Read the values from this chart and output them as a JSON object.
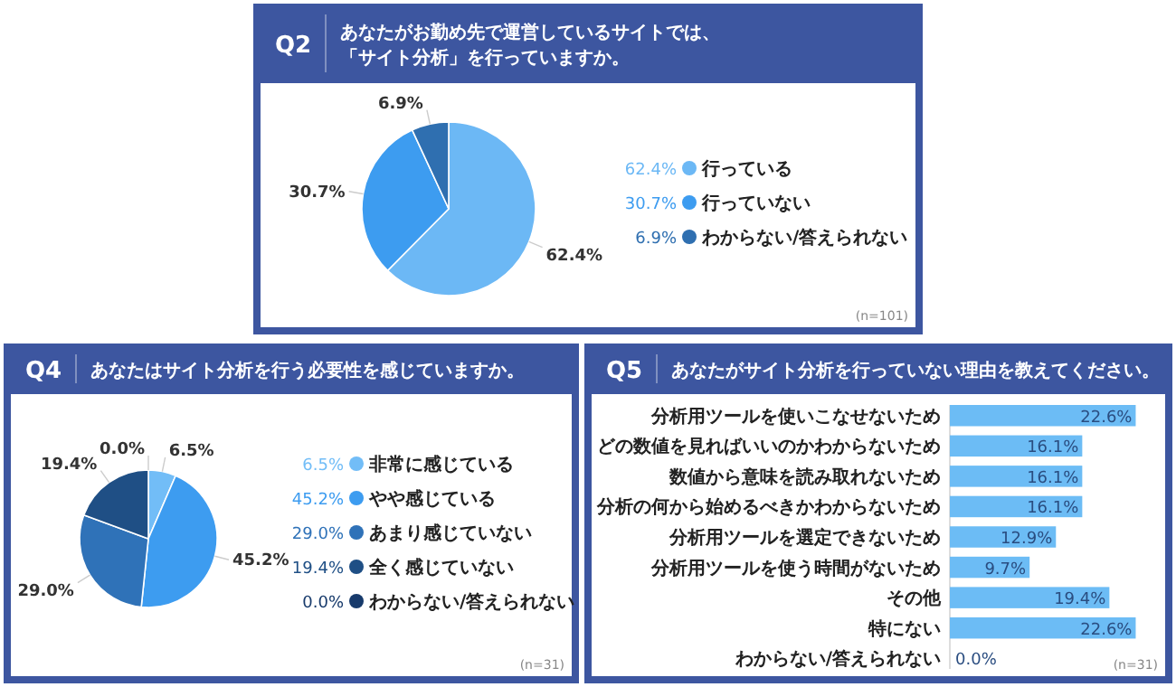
{
  "chart_data": [
    {
      "type": "pie",
      "title": "Q2",
      "subtitle": "あなたがお勤め先で運営しているサイトでは、「サイト分析」を行っていますか。",
      "categories": [
        "行っている",
        "行っていない",
        "わからない/答えられない"
      ],
      "values": [
        62.4,
        30.7,
        6.9
      ],
      "colors": [
        "#6cb8f5",
        "#3d9cf0",
        "#2f6fb0"
      ],
      "value_labels": [
        "62.4%",
        "30.7%",
        "6.9%"
      ],
      "legend": "right",
      "annotations": [
        "(n=101)"
      ]
    },
    {
      "type": "pie",
      "title": "Q4",
      "subtitle": "あなたはサイト分析を行う必要性を感じていますか。",
      "categories": [
        "非常に感じている",
        "やや感じている",
        "あまり感じていない",
        "全く感じていない",
        "わからない/答えられない"
      ],
      "values": [
        6.5,
        45.2,
        29.0,
        19.4,
        0.0
      ],
      "colors": [
        "#72bdf7",
        "#3d9cf0",
        "#2f72b8",
        "#1f4f85",
        "#173a6b"
      ],
      "value_labels": [
        "6.5%",
        "45.2%",
        "29.0%",
        "19.4%",
        "0.0%"
      ],
      "legend": "right",
      "annotations": [
        "(n=31)"
      ]
    },
    {
      "type": "bar",
      "orientation": "horizontal",
      "title": "Q5",
      "subtitle": "あなたがサイト分析を行っていない理由を教えてください。",
      "categories": [
        "分析用ツールを使いこなせないため",
        "どの数値を見ればいいのかわからないため",
        "数値から意味を読み取れないため",
        "分析の何から始めるべきかわからないため",
        "分析用ツールを選定できないため",
        "分析用ツールを使う時間がないため",
        "その他",
        "特にない",
        "わからない/答えられない"
      ],
      "values": [
        22.6,
        16.1,
        16.1,
        16.1,
        12.9,
        9.7,
        19.4,
        22.6,
        0.0
      ],
      "color": "#6cbcf5",
      "value_labels": [
        "22.6%",
        "16.1%",
        "16.1%",
        "16.1%",
        "12.9%",
        "9.7%",
        "19.4%",
        "22.6%",
        "0.0%"
      ],
      "annotations": [
        "(n=31)"
      ]
    }
  ]
}
